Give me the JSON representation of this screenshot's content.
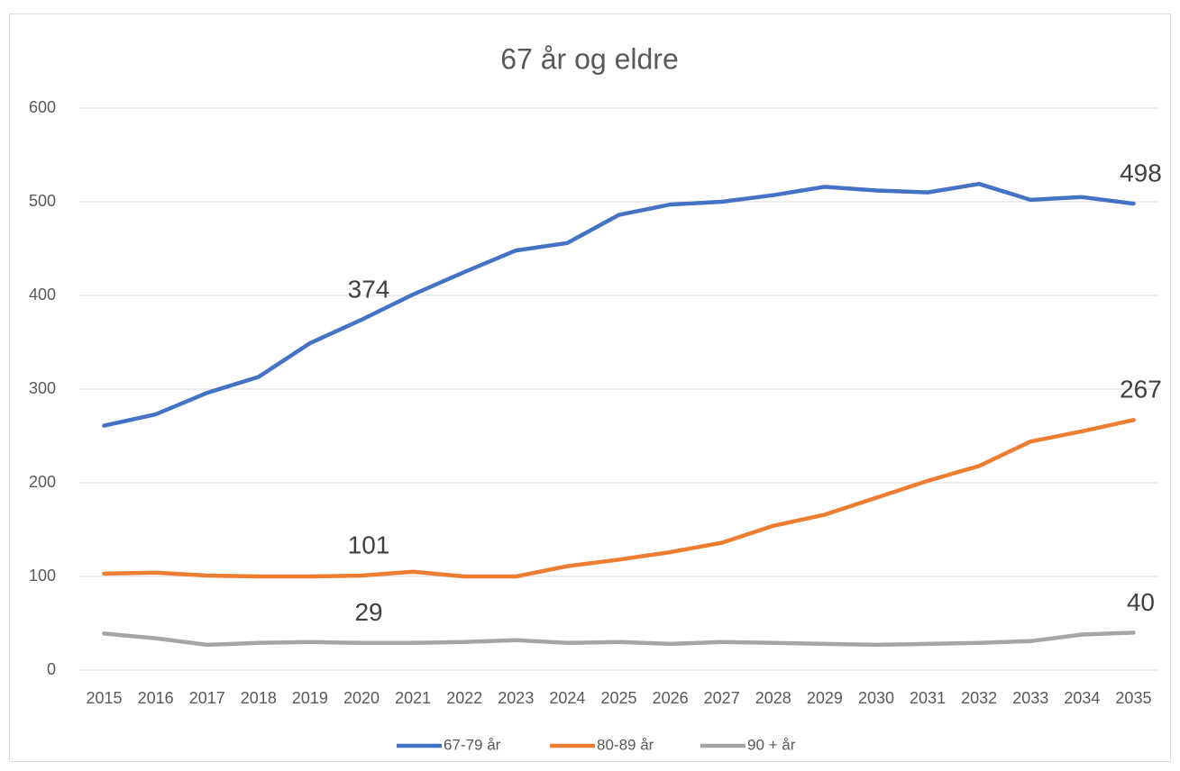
{
  "chart_data": {
    "type": "line",
    "title": "67 år og eldre",
    "categories": [
      "2015",
      "2016",
      "2017",
      "2018",
      "2019",
      "2020",
      "2021",
      "2022",
      "2023",
      "2024",
      "2025",
      "2026",
      "2027",
      "2028",
      "2029",
      "2030",
      "2031",
      "2032",
      "2033",
      "2034",
      "2035"
    ],
    "series": [
      {
        "name": "67-79 år",
        "color": "#4472c4",
        "labeled_points": [
          5,
          20
        ],
        "values": [
          261,
          273,
          296,
          313,
          349,
          374,
          401,
          425,
          448,
          456,
          486,
          497,
          500,
          507,
          516,
          512,
          510,
          519,
          502,
          505,
          498
        ]
      },
      {
        "name": "80-89 år",
        "color": "#ed7d31",
        "labeled_points": [
          5,
          20
        ],
        "values": [
          103,
          104,
          101,
          100,
          100,
          101,
          105,
          100,
          100,
          111,
          118,
          126,
          136,
          154,
          166,
          184,
          202,
          218,
          244,
          255,
          267
        ]
      },
      {
        "name": "90 + år",
        "color": "#a5a5a5",
        "labeled_points": [
          5,
          20
        ],
        "values": [
          39,
          34,
          27,
          29,
          30,
          29,
          29,
          30,
          32,
          29,
          30,
          28,
          30,
          29,
          28,
          27,
          28,
          29,
          31,
          38,
          40
        ]
      }
    ],
    "ylim": [
      0,
      600
    ],
    "yticks": [
      0,
      100,
      200,
      300,
      400,
      500,
      600
    ],
    "grid": true,
    "legend": "bottom"
  }
}
